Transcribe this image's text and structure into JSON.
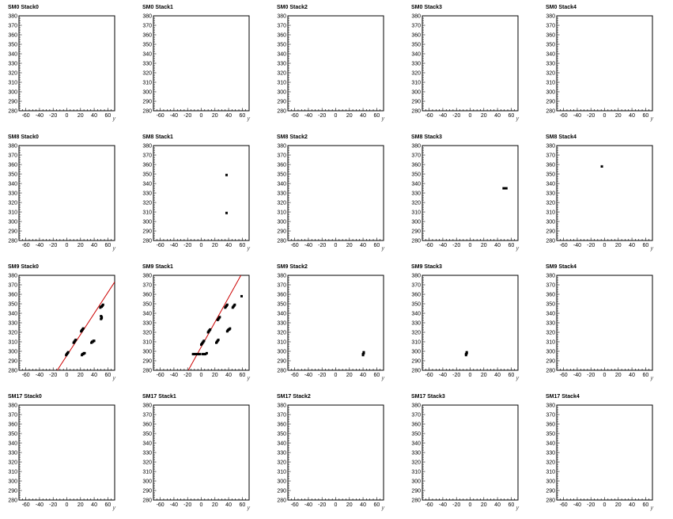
{
  "colors": {
    "frame": "#000000",
    "marker": "#000000",
    "fit_line": "#cc0000",
    "background": "#ffffff"
  },
  "chart_data": [
    {
      "type": "scatter",
      "title": "SM0 Stack0",
      "xlabel": "y",
      "ylabel": "",
      "xlim": [
        -70,
        70
      ],
      "ylim": [
        280,
        380
      ],
      "xticks": [
        -60,
        -40,
        -20,
        0,
        20,
        40,
        60
      ],
      "yticks": [
        280,
        290,
        300,
        310,
        320,
        330,
        340,
        350,
        360,
        370,
        380
      ],
      "points": [],
      "fit_lines": []
    },
    {
      "type": "scatter",
      "title": "SM0 Stack1",
      "xlabel": "y",
      "ylabel": "",
      "xlim": [
        -70,
        70
      ],
      "ylim": [
        280,
        380
      ],
      "xticks": [
        -60,
        -40,
        -20,
        0,
        20,
        40,
        60
      ],
      "yticks": [
        280,
        290,
        300,
        310,
        320,
        330,
        340,
        350,
        360,
        370,
        380
      ],
      "points": [],
      "fit_lines": []
    },
    {
      "type": "scatter",
      "title": "SM0 Stack2",
      "xlabel": "y",
      "ylabel": "",
      "xlim": [
        -70,
        70
      ],
      "ylim": [
        280,
        380
      ],
      "xticks": [
        -60,
        -40,
        -20,
        0,
        20,
        40,
        60
      ],
      "yticks": [
        280,
        290,
        300,
        310,
        320,
        330,
        340,
        350,
        360,
        370,
        380
      ],
      "points": [],
      "fit_lines": []
    },
    {
      "type": "scatter",
      "title": "SM0 Stack3",
      "xlabel": "y",
      "ylabel": "",
      "xlim": [
        -70,
        70
      ],
      "ylim": [
        280,
        380
      ],
      "xticks": [
        -60,
        -40,
        -20,
        0,
        20,
        40,
        60
      ],
      "yticks": [
        280,
        290,
        300,
        310,
        320,
        330,
        340,
        350,
        360,
        370,
        380
      ],
      "points": [],
      "fit_lines": []
    },
    {
      "type": "scatter",
      "title": "SM0 Stack4",
      "xlabel": "y",
      "ylabel": "",
      "xlim": [
        -70,
        70
      ],
      "ylim": [
        280,
        380
      ],
      "xticks": [
        -60,
        -40,
        -20,
        0,
        20,
        40,
        60
      ],
      "yticks": [
        280,
        290,
        300,
        310,
        320,
        330,
        340,
        350,
        360,
        370,
        380
      ],
      "points": [],
      "fit_lines": []
    },
    {
      "type": "scatter",
      "title": "SM8 Stack0",
      "xlabel": "y",
      "ylabel": "",
      "xlim": [
        -70,
        70
      ],
      "ylim": [
        280,
        380
      ],
      "xticks": [
        -60,
        -40,
        -20,
        0,
        20,
        40,
        60
      ],
      "yticks": [
        280,
        290,
        300,
        310,
        320,
        330,
        340,
        350,
        360,
        370,
        380
      ],
      "points": [],
      "fit_lines": []
    },
    {
      "type": "scatter",
      "title": "SM8 Stack1",
      "xlabel": "y",
      "ylabel": "",
      "xlim": [
        -70,
        70
      ],
      "ylim": [
        280,
        380
      ],
      "xticks": [
        -60,
        -40,
        -20,
        0,
        20,
        40,
        60
      ],
      "yticks": [
        280,
        290,
        300,
        310,
        320,
        330,
        340,
        350,
        360,
        370,
        380
      ],
      "points": [
        [
          37,
          349
        ],
        [
          37,
          309
        ]
      ],
      "fit_lines": []
    },
    {
      "type": "scatter",
      "title": "SM8 Stack2",
      "xlabel": "y",
      "ylabel": "",
      "xlim": [
        -70,
        70
      ],
      "ylim": [
        280,
        380
      ],
      "xticks": [
        -60,
        -40,
        -20,
        0,
        20,
        40,
        60
      ],
      "yticks": [
        280,
        290,
        300,
        310,
        320,
        330,
        340,
        350,
        360,
        370,
        380
      ],
      "points": [],
      "fit_lines": []
    },
    {
      "type": "scatter",
      "title": "SM8 Stack3",
      "xlabel": "y",
      "ylabel": "",
      "xlim": [
        -70,
        70
      ],
      "ylim": [
        280,
        380
      ],
      "xticks": [
        -60,
        -40,
        -20,
        0,
        20,
        40,
        60
      ],
      "yticks": [
        280,
        290,
        300,
        310,
        320,
        330,
        340,
        350,
        360,
        370,
        380
      ],
      "points": [
        [
          49,
          335
        ],
        [
          50,
          335
        ],
        [
          51,
          335
        ],
        [
          52,
          335
        ],
        [
          53,
          335
        ]
      ],
      "fit_lines": []
    },
    {
      "type": "scatter",
      "title": "SM8 Stack4",
      "xlabel": "y",
      "ylabel": "",
      "xlim": [
        -70,
        70
      ],
      "ylim": [
        280,
        380
      ],
      "xticks": [
        -60,
        -40,
        -20,
        0,
        20,
        40,
        60
      ],
      "yticks": [
        280,
        290,
        300,
        310,
        320,
        330,
        340,
        350,
        360,
        370,
        380
      ],
      "points": [
        [
          -4,
          358
        ]
      ],
      "fit_lines": []
    },
    {
      "type": "scatter",
      "title": "SM9 Stack0",
      "xlabel": "y",
      "ylabel": "",
      "xlim": [
        -70,
        70
      ],
      "ylim": [
        280,
        380
      ],
      "xticks": [
        -60,
        -40,
        -20,
        0,
        20,
        40,
        60
      ],
      "yticks": [
        280,
        290,
        300,
        310,
        320,
        330,
        340,
        350,
        360,
        370,
        380
      ],
      "points": [
        [
          -1,
          296
        ],
        [
          0,
          297
        ],
        [
          1,
          298
        ],
        [
          2,
          299
        ],
        [
          10,
          309
        ],
        [
          11,
          310
        ],
        [
          12,
          311
        ],
        [
          13,
          312
        ],
        [
          21,
          321
        ],
        [
          22,
          322
        ],
        [
          23,
          323
        ],
        [
          24,
          324
        ],
        [
          22,
          296
        ],
        [
          23,
          297
        ],
        [
          24,
          297
        ],
        [
          25,
          298
        ],
        [
          26,
          298
        ],
        [
          36,
          309
        ],
        [
          37,
          310
        ],
        [
          38,
          310
        ],
        [
          39,
          311
        ],
        [
          40,
          311
        ],
        [
          49,
          346
        ],
        [
          50,
          347
        ],
        [
          51,
          347
        ],
        [
          52,
          348
        ],
        [
          53,
          349
        ],
        [
          50,
          334
        ],
        [
          51,
          335
        ],
        [
          51,
          336
        ],
        [
          50,
          337
        ]
      ],
      "fit_lines": [
        [
          -14,
          280
        ],
        [
          70,
          373
        ]
      ]
    },
    {
      "type": "scatter",
      "title": "SM9 Stack1",
      "xlabel": "y",
      "ylabel": "",
      "xlim": [
        -70,
        70
      ],
      "ylim": [
        280,
        380
      ],
      "xticks": [
        -60,
        -40,
        -20,
        0,
        20,
        40,
        60
      ],
      "yticks": [
        280,
        290,
        300,
        310,
        320,
        330,
        340,
        350,
        360,
        370,
        380
      ],
      "points": [
        [
          -12,
          297
        ],
        [
          -10,
          297
        ],
        [
          -8,
          297
        ],
        [
          -6,
          297
        ],
        [
          -4,
          297
        ],
        [
          -2,
          297
        ],
        [
          2,
          297
        ],
        [
          4,
          297
        ],
        [
          6,
          297
        ],
        [
          8,
          298
        ],
        [
          0,
          307
        ],
        [
          1,
          308
        ],
        [
          2,
          309
        ],
        [
          3,
          310
        ],
        [
          4,
          311
        ],
        [
          10,
          320
        ],
        [
          11,
          321
        ],
        [
          12,
          322
        ],
        [
          13,
          323
        ],
        [
          22,
          309
        ],
        [
          23,
          310
        ],
        [
          24,
          311
        ],
        [
          25,
          312
        ],
        [
          24,
          333
        ],
        [
          25,
          334
        ],
        [
          26,
          335
        ],
        [
          27,
          336
        ],
        [
          35,
          346
        ],
        [
          36,
          347
        ],
        [
          37,
          348
        ],
        [
          38,
          349
        ],
        [
          38,
          321
        ],
        [
          39,
          322
        ],
        [
          40,
          323
        ],
        [
          41,
          323
        ],
        [
          42,
          324
        ],
        [
          46,
          346
        ],
        [
          47,
          347
        ],
        [
          48,
          348
        ],
        [
          49,
          349
        ],
        [
          59,
          358
        ]
      ],
      "fit_lines": [
        [
          -19,
          280
        ],
        [
          58,
          380
        ]
      ]
    },
    {
      "type": "scatter",
      "title": "SM9 Stack2",
      "xlabel": "y",
      "ylabel": "",
      "xlim": [
        -70,
        70
      ],
      "ylim": [
        280,
        380
      ],
      "xticks": [
        -60,
        -40,
        -20,
        0,
        20,
        40,
        60
      ],
      "yticks": [
        280,
        290,
        300,
        310,
        320,
        330,
        340,
        350,
        360,
        370,
        380
      ],
      "points": [
        [
          40,
          296
        ],
        [
          40,
          297
        ],
        [
          41,
          298
        ],
        [
          41,
          299
        ]
      ],
      "fit_lines": []
    },
    {
      "type": "scatter",
      "title": "SM9 Stack3",
      "xlabel": "y",
      "ylabel": "",
      "xlim": [
        -70,
        70
      ],
      "ylim": [
        280,
        380
      ],
      "xticks": [
        -60,
        -40,
        -20,
        0,
        20,
        40,
        60
      ],
      "yticks": [
        280,
        290,
        300,
        310,
        320,
        330,
        340,
        350,
        360,
        370,
        380
      ],
      "points": [
        [
          -6,
          296
        ],
        [
          -6,
          297
        ],
        [
          -5,
          298
        ],
        [
          -5,
          299
        ]
      ],
      "fit_lines": []
    },
    {
      "type": "scatter",
      "title": "SM9 Stack4",
      "xlabel": "y",
      "ylabel": "",
      "xlim": [
        -70,
        70
      ],
      "ylim": [
        280,
        380
      ],
      "xticks": [
        -60,
        -40,
        -20,
        0,
        20,
        40,
        60
      ],
      "yticks": [
        280,
        290,
        300,
        310,
        320,
        330,
        340,
        350,
        360,
        370,
        380
      ],
      "points": [],
      "fit_lines": []
    },
    {
      "type": "scatter",
      "title": "SM17 Stack0",
      "xlabel": "y",
      "ylabel": "",
      "xlim": [
        -70,
        70
      ],
      "ylim": [
        280,
        380
      ],
      "xticks": [
        -60,
        -40,
        -20,
        0,
        20,
        40,
        60
      ],
      "yticks": [
        280,
        290,
        300,
        310,
        320,
        330,
        340,
        350,
        360,
        370,
        380
      ],
      "points": [],
      "fit_lines": []
    },
    {
      "type": "scatter",
      "title": "SM17 Stack1",
      "xlabel": "y",
      "ylabel": "",
      "xlim": [
        -70,
        70
      ],
      "ylim": [
        280,
        380
      ],
      "xticks": [
        -60,
        -40,
        -20,
        0,
        20,
        40,
        60
      ],
      "yticks": [
        280,
        290,
        300,
        310,
        320,
        330,
        340,
        350,
        360,
        370,
        380
      ],
      "points": [],
      "fit_lines": []
    },
    {
      "type": "scatter",
      "title": "SM17 Stack2",
      "xlabel": "y",
      "ylabel": "",
      "xlim": [
        -70,
        70
      ],
      "ylim": [
        280,
        380
      ],
      "xticks": [
        -60,
        -40,
        -20,
        0,
        20,
        40,
        60
      ],
      "yticks": [
        280,
        290,
        300,
        310,
        320,
        330,
        340,
        350,
        360,
        370,
        380
      ],
      "points": [],
      "fit_lines": []
    },
    {
      "type": "scatter",
      "title": "SM17 Stack3",
      "xlabel": "y",
      "ylabel": "",
      "xlim": [
        -70,
        70
      ],
      "ylim": [
        280,
        380
      ],
      "xticks": [
        -60,
        -40,
        -20,
        0,
        20,
        40,
        60
      ],
      "yticks": [
        280,
        290,
        300,
        310,
        320,
        330,
        340,
        350,
        360,
        370,
        380
      ],
      "points": [],
      "fit_lines": []
    },
    {
      "type": "scatter",
      "title": "SM17 Stack4",
      "xlabel": "y",
      "ylabel": "",
      "xlim": [
        -70,
        70
      ],
      "ylim": [
        280,
        380
      ],
      "xticks": [
        -60,
        -40,
        -20,
        0,
        20,
        40,
        60
      ],
      "yticks": [
        280,
        290,
        300,
        310,
        320,
        330,
        340,
        350,
        360,
        370,
        380
      ],
      "points": [],
      "fit_lines": []
    }
  ]
}
